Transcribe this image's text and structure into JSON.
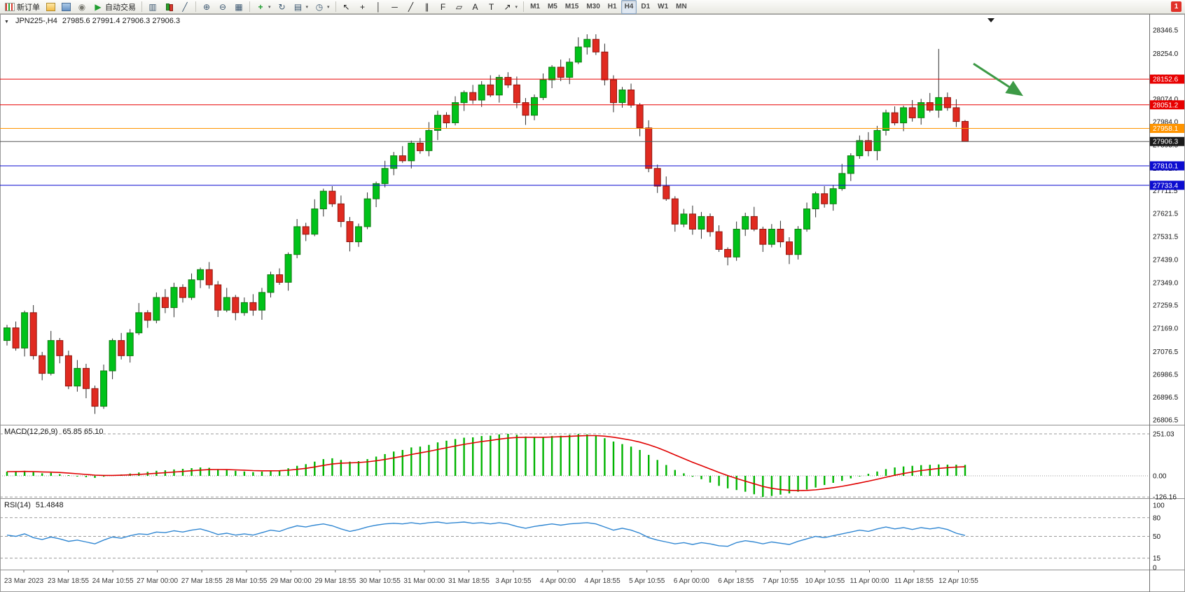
{
  "toolbar": {
    "badge": "1",
    "groups": [
      {
        "items": [
          {
            "name": "new-order",
            "icon": "new-order",
            "label": "新订单"
          },
          {
            "name": "charts",
            "icon": "chart-yellow"
          },
          {
            "name": "market-watch",
            "icon": "chart-blue"
          },
          {
            "name": "signals",
            "icon": "circle"
          },
          {
            "name": "autotrading",
            "icon": "play-green",
            "label": "自动交易"
          }
        ]
      },
      {
        "items": [
          {
            "name": "bar-chart",
            "icon": "bars"
          },
          {
            "name": "candlestick-chart",
            "icon": "candles"
          },
          {
            "name": "line-chart",
            "icon": "line"
          }
        ]
      },
      {
        "items": [
          {
            "name": "zoom-in",
            "icon": "zoom-in"
          },
          {
            "name": "zoom-out",
            "icon": "zoom-out"
          },
          {
            "name": "tile-windows",
            "icon": "tile"
          }
        ]
      },
      {
        "items": [
          {
            "name": "indicators",
            "icon": "indicators",
            "dd": true
          },
          {
            "name": "auto-scroll",
            "icon": "cycle"
          },
          {
            "name": "templates",
            "icon": "template",
            "dd": true
          },
          {
            "name": "periods",
            "icon": "clock",
            "dd": true
          }
        ]
      },
      {
        "items": [
          {
            "name": "cursor",
            "icon": "cursor"
          },
          {
            "name": "crosshair",
            "icon": "crosshair"
          },
          {
            "name": "vertical-line",
            "icon": "vline"
          },
          {
            "name": "horizontal-line",
            "icon": "hline"
          },
          {
            "name": "trendline",
            "icon": "trendline"
          },
          {
            "name": "equidistant-channel",
            "icon": "channel"
          },
          {
            "name": "fibonacci",
            "icon": "fibo"
          },
          {
            "name": "shapes",
            "icon": "shapes"
          },
          {
            "name": "text",
            "icon": "text"
          },
          {
            "name": "text-label",
            "icon": "label"
          },
          {
            "name": "arrows",
            "icon": "arrows",
            "dd": true
          }
        ]
      },
      {
        "items": [
          {
            "name": "tf-m1",
            "label": "M1",
            "tf": true
          },
          {
            "name": "tf-m5",
            "label": "M5",
            "tf": true
          },
          {
            "name": "tf-m15",
            "label": "M15",
            "tf": true
          },
          {
            "name": "tf-m30",
            "label": "M30",
            "tf": true
          },
          {
            "name": "tf-h1",
            "label": "H1",
            "tf": true
          },
          {
            "name": "tf-h4",
            "label": "H4",
            "tf": true,
            "active": true
          },
          {
            "name": "tf-d1",
            "label": "D1",
            "tf": true
          },
          {
            "name": "tf-w1",
            "label": "W1",
            "tf": true
          },
          {
            "name": "tf-mn",
            "label": "MN",
            "tf": true
          }
        ]
      }
    ]
  },
  "chart": {
    "marker": "▼",
    "symbol_period": "JPN225-,H4",
    "ohlc": "27985.6 27991.4 27906.3 27906.3"
  },
  "chart_data": {
    "type": "candlestick",
    "title": "JPN225-,H4",
    "ohlc_header": {
      "open": 27985.6,
      "high": 27991.4,
      "low": 27906.3,
      "close": 27906.3
    },
    "price_axis": {
      "max": 28346.5,
      "min": 26806.5,
      "ticks": [
        "28346.5",
        "28254.0",
        "28161.5",
        "28074.0",
        "27984.0",
        "27893.5",
        "27801.0",
        "27711.5",
        "27621.5",
        "27531.5",
        "27439.0",
        "27349.0",
        "27259.5",
        "27169.0",
        "27076.5",
        "26986.5",
        "26896.5",
        "26806.5"
      ]
    },
    "colors": {
      "up_fill": "#00c21a",
      "up_border": "#127a12",
      "down_fill": "#e02a20",
      "down_border": "#8f160f",
      "wick": "#2e2e2e"
    },
    "candles": {
      "open": [
        27120,
        27170,
        27090,
        27230,
        27060,
        26990,
        27120,
        27060,
        26940,
        27010,
        26930,
        26860,
        27000,
        27120,
        27060,
        27150,
        27230,
        27200,
        27290,
        27250,
        27330,
        27290,
        27360,
        27400,
        27340,
        27240,
        27290,
        27230,
        27270,
        27240,
        27310,
        27380,
        27350,
        27460,
        27570,
        27540,
        27640,
        27710,
        27660,
        27590,
        27510,
        27570,
        27680,
        27740,
        27800,
        27850,
        27830,
        27900,
        27870,
        27950,
        28010,
        27980,
        28060,
        28100,
        28070,
        28130,
        28090,
        28160,
        28130,
        28060,
        28010,
        28080,
        28150,
        28200,
        28160,
        28220,
        28280,
        28310,
        28260,
        28150,
        28060,
        28110,
        28050,
        27960,
        27800,
        27730,
        27680,
        27580,
        27620,
        27560,
        27610,
        27550,
        27480,
        27450,
        27560,
        27610,
        27560,
        27500,
        27560,
        27510,
        27460,
        27560,
        27640,
        27700,
        27660,
        27720,
        27780,
        27850,
        27910,
        27870,
        27950,
        28020,
        27980,
        28040,
        28000,
        28060,
        28030,
        28080,
        28040,
        27985.6
      ],
      "high": [
        27182,
        27195,
        27238,
        27260,
        27075,
        27158,
        27130,
        27080,
        27043,
        27028,
        26942,
        27025,
        27128,
        27150,
        27165,
        27268,
        27240,
        27310,
        27323,
        27348,
        27342,
        27385,
        27408,
        27430,
        27355,
        27328,
        27300,
        27290,
        27303,
        27328,
        27392,
        27405,
        27468,
        27600,
        27585,
        27678,
        27720,
        27730,
        27693,
        27608,
        27582,
        27705,
        27748,
        27830,
        27865,
        27888,
        27910,
        27920,
        27983,
        28028,
        28022,
        28085,
        28108,
        28130,
        28145,
        28168,
        28170,
        28180,
        28163,
        28078,
        28092,
        28175,
        28208,
        28230,
        28235,
        28318,
        28330,
        28330,
        28293,
        28168,
        28122,
        28135,
        28058,
        27990,
        27815,
        27768,
        27690,
        27640,
        27653,
        27628,
        27622,
        27575,
        27488,
        27590,
        27625,
        27648,
        27570,
        27580,
        27593,
        27528,
        27572,
        27665,
        27708,
        27730,
        27735,
        27818,
        27860,
        27930,
        27943,
        27968,
        28032,
        28045,
        28048,
        28070,
        28075,
        28098,
        28272,
        28100,
        28073,
        27991.4
      ],
      "low": [
        27100,
        27080,
        27057,
        27045,
        26963,
        26982,
        27030,
        26928,
        26918,
        26892,
        26830,
        26850,
        26967,
        27045,
        27033,
        27142,
        27170,
        27188,
        27228,
        27212,
        27270,
        27280,
        27327,
        27325,
        27213,
        27232,
        27200,
        27218,
        27218,
        27202,
        27290,
        27340,
        27317,
        27445,
        27513,
        27532,
        27610,
        27648,
        27568,
        27472,
        27490,
        27560,
        27647,
        27725,
        27773,
        27822,
        27800,
        27858,
        27848,
        27912,
        27960,
        27970,
        28027,
        28055,
        28043,
        28082,
        28060,
        28118,
        28038,
        27972,
        27990,
        28070,
        28117,
        28145,
        28133,
        28212,
        28250,
        28248,
        28128,
        28022,
        28040,
        28040,
        27927,
        27785,
        27703,
        27672,
        27550,
        27568,
        27538,
        27522,
        27530,
        27470,
        27417,
        27435,
        27533,
        27552,
        27470,
        27488,
        27488,
        27422,
        27440,
        27550,
        27607,
        27645,
        27633,
        27712,
        27750,
        27838,
        27848,
        27832,
        27930,
        27970,
        27947,
        27985,
        27973,
        28022,
        28000,
        28028,
        27963.5,
        27906.3
      ],
      "close": [
        27170,
        27090,
        27230,
        27060,
        26990,
        27120,
        27060,
        26940,
        27010,
        26930,
        26860,
        27000,
        27120,
        27060,
        27150,
        27230,
        27200,
        27290,
        27250,
        27330,
        27290,
        27360,
        27400,
        27340,
        27240,
        27290,
        27230,
        27270,
        27240,
        27310,
        27380,
        27350,
        27460,
        27570,
        27540,
        27640,
        27710,
        27660,
        27590,
        27510,
        27570,
        27680,
        27740,
        27800,
        27850,
        27830,
        27900,
        27870,
        27950,
        28010,
        27980,
        28060,
        28100,
        28070,
        28130,
        28090,
        28160,
        28130,
        28060,
        28010,
        28080,
        28150,
        28200,
        28160,
        28220,
        28280,
        28310,
        28260,
        28150,
        28060,
        28110,
        28050,
        27960,
        27800,
        27730,
        27680,
        27580,
        27620,
        27560,
        27610,
        27550,
        27480,
        27450,
        27560,
        27610,
        27560,
        27500,
        27560,
        27510,
        27460,
        27560,
        27640,
        27700,
        27660,
        27720,
        27780,
        27850,
        27910,
        27870,
        27950,
        28020,
        27980,
        28040,
        28000,
        28060,
        28030,
        28080,
        28040,
        27985.6,
        27906.3
      ]
    },
    "hlines": [
      {
        "price": 28152.6,
        "label": "28152.6",
        "color": "#e80000"
      },
      {
        "price": 28051.2,
        "label": "28051.2",
        "color": "#e80000"
      },
      {
        "price": 27958.1,
        "label": "27958.1",
        "color": "#ff9400"
      },
      {
        "price": 27906.3,
        "label": "27906.3",
        "color": "#1a1a1a",
        "line_color": "#555555"
      },
      {
        "price": 27810.1,
        "label": "27810.1",
        "color": "#0d0dd0"
      },
      {
        "price": 27733.4,
        "label": "27733.4",
        "color": "#0d0dd0"
      }
    ],
    "time_labels": [
      "23 Mar 2023",
      "23 Mar 18:55",
      "24 Mar 10:55",
      "27 Mar 00:00",
      "27 Mar 18:55",
      "28 Mar 10:55",
      "29 Mar 00:00",
      "29 Mar 18:55",
      "30 Mar 10:55",
      "31 Mar 00:00",
      "31 Mar 18:55",
      "3 Apr 10:55",
      "4 Apr 00:00",
      "4 Apr 18:55",
      "5 Apr 10:55",
      "6 Apr 00:00",
      "6 Apr 18:55",
      "7 Apr 10:55",
      "10 Apr 10:55",
      "11 Apr 00:00",
      "11 Apr 18:55",
      "12 Apr 10:55"
    ],
    "macd": {
      "label": "MACD(12,26,9)",
      "values_text": "65.85 65.10",
      "axis_labels": [
        "251.03",
        "0.00",
        "-126.16"
      ],
      "signal_period": 9,
      "histogram_color": "#00b400",
      "signal_color": "#e00000",
      "histogram": [
        25,
        28,
        30,
        22,
        15,
        18,
        10,
        2,
        -3,
        -8,
        -12,
        -5,
        3,
        8,
        14,
        20,
        24,
        30,
        33,
        38,
        42,
        46,
        50,
        48,
        40,
        35,
        30,
        26,
        22,
        25,
        30,
        32,
        45,
        60,
        70,
        85,
        100,
        105,
        95,
        85,
        88,
        100,
        115,
        130,
        145,
        155,
        170,
        175,
        185,
        200,
        210,
        220,
        228,
        230,
        238,
        240,
        248,
        251.03,
        245,
        235,
        230,
        232,
        238,
        240,
        245,
        250,
        248,
        240,
        225,
        205,
        190,
        175,
        155,
        125,
        95,
        65,
        35,
        15,
        -5,
        -20,
        -40,
        -60,
        -75,
        -85,
        -95,
        -110,
        -126.16,
        -120,
        -112,
        -105,
        -95,
        -82,
        -70,
        -55,
        -42,
        -30,
        -15,
        -2,
        12,
        26,
        40,
        50,
        56,
        60,
        64,
        66,
        68,
        67,
        66.5,
        65.85
      ]
    },
    "rsi": {
      "label": "RSI(14)",
      "value_text": "51.4848",
      "axis_labels": [
        "100",
        "80",
        "50",
        "15",
        "0"
      ],
      "levels": [
        80,
        50,
        15
      ],
      "line_color": "#2f86d2",
      "values": [
        52,
        50,
        54,
        48,
        45,
        49,
        46,
        42,
        44,
        41,
        38,
        44,
        49,
        47,
        51,
        54,
        53,
        57,
        56,
        59,
        57,
        60,
        62,
        58,
        53,
        55,
        52,
        54,
        52,
        56,
        60,
        58,
        63,
        67,
        65,
        68,
        70,
        67,
        62,
        58,
        61,
        65,
        68,
        70,
        71,
        70,
        72,
        70,
        72,
        73,
        71,
        72,
        73,
        71,
        72,
        70,
        72,
        70,
        66,
        63,
        66,
        68,
        70,
        68,
        70,
        71,
        72,
        70,
        65,
        60,
        63,
        60,
        55,
        48,
        44,
        41,
        38,
        40,
        37,
        40,
        38,
        35,
        34,
        40,
        43,
        41,
        38,
        41,
        39,
        37,
        42,
        46,
        50,
        48,
        51,
        54,
        57,
        60,
        58,
        62,
        65,
        62,
        64,
        61,
        64,
        62,
        64,
        61,
        55,
        51.4848
      ]
    },
    "annotation_arrow": {
      "color": "#3d9a46"
    }
  }
}
